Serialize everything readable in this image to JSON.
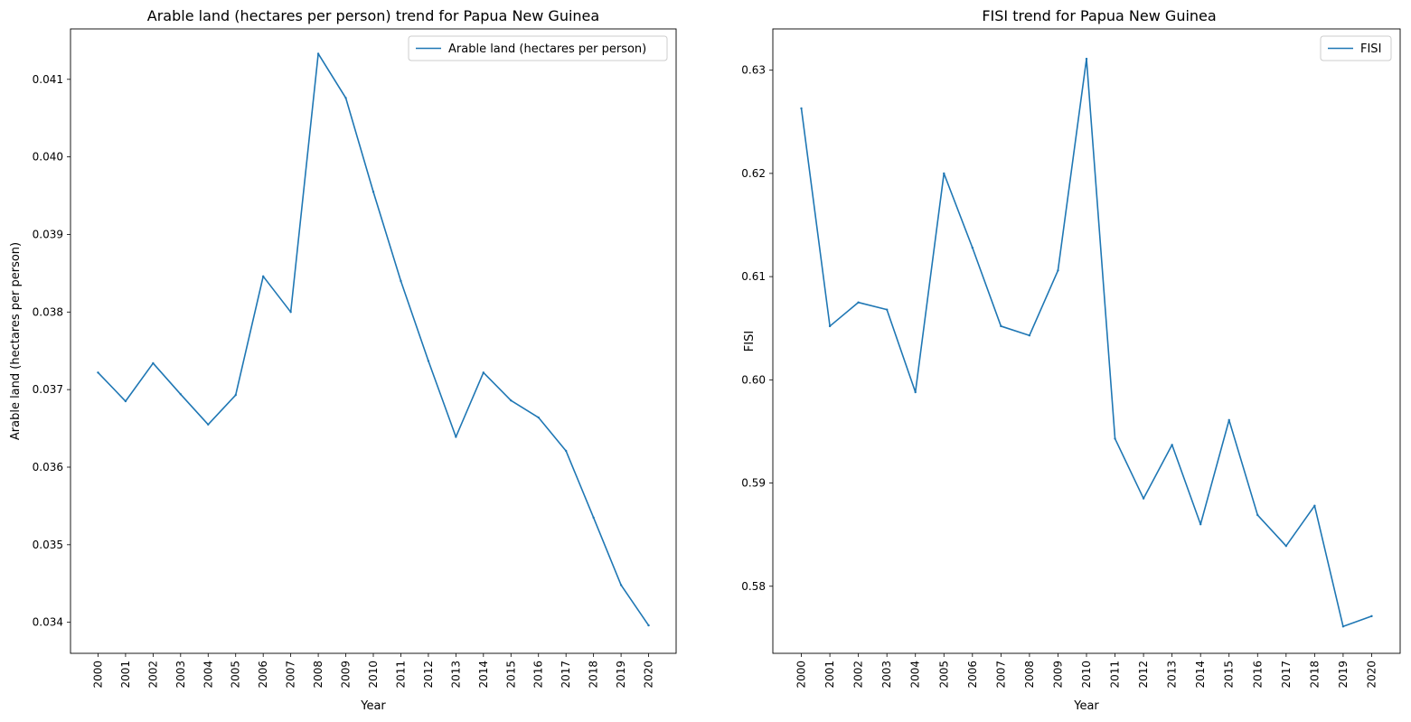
{
  "chart_data": [
    {
      "type": "line",
      "title": "Arable land (hectares per person) trend for Papua New Guinea",
      "xlabel": "Year",
      "ylabel": "Arable land (hectares per person)",
      "legend_position": "top-right",
      "grid": false,
      "line_color": "#1f77b4",
      "x": [
        "2000",
        "2001",
        "2002",
        "2003",
        "2004",
        "2005",
        "2006",
        "2007",
        "2008",
        "2009",
        "2010",
        "2011",
        "2012",
        "2013",
        "2014",
        "2015",
        "2016",
        "2017",
        "2018",
        "2019",
        "2020"
      ],
      "series": [
        {
          "name": "Arable land (hectares per person)",
          "values": [
            0.03722,
            0.03685,
            0.03734,
            0.03694,
            0.03655,
            0.03693,
            0.03846,
            0.038,
            0.04133,
            0.04076,
            0.03955,
            0.0384,
            0.03737,
            0.03639,
            0.03722,
            0.03686,
            0.03664,
            0.03621,
            0.03535,
            0.03448,
            0.03396
          ]
        }
      ],
      "ylim": [
        0.0336,
        0.04165
      ],
      "yticks": [
        "0.034",
        "0.035",
        "0.036",
        "0.037",
        "0.038",
        "0.039",
        "0.040",
        "0.041"
      ],
      "ytick_values": [
        0.034,
        0.035,
        0.036,
        0.037,
        0.038,
        0.039,
        0.04,
        0.041
      ]
    },
    {
      "type": "line",
      "title": "FISI trend for Papua New Guinea",
      "xlabel": "Year",
      "ylabel": "FISI",
      "legend_position": "top-right",
      "grid": false,
      "line_color": "#1f77b4",
      "x": [
        "2000",
        "2001",
        "2002",
        "2003",
        "2004",
        "2005",
        "2006",
        "2007",
        "2008",
        "2009",
        "2010",
        "2011",
        "2012",
        "2013",
        "2014",
        "2015",
        "2016",
        "2017",
        "2018",
        "2019",
        "2020"
      ],
      "series": [
        {
          "name": "FISI",
          "values": [
            0.6263,
            0.6052,
            0.6075,
            0.6068,
            0.5988,
            0.62,
            0.6128,
            0.6052,
            0.6043,
            0.6106,
            0.6311,
            0.5943,
            0.5885,
            0.5937,
            0.586,
            0.5961,
            0.5869,
            0.5839,
            0.5878,
            0.5761,
            0.5771
          ]
        }
      ],
      "ylim": [
        0.5735,
        0.634
      ],
      "yticks": [
        "0.58",
        "0.59",
        "0.60",
        "0.61",
        "0.62",
        "0.63"
      ],
      "ytick_values": [
        0.58,
        0.59,
        0.6,
        0.61,
        0.62,
        0.63
      ]
    }
  ]
}
